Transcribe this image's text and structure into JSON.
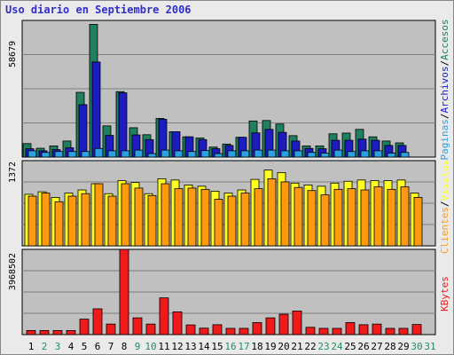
{
  "chart_data": {
    "type": "bar",
    "title": "Uso diario en Septiembre 2006",
    "categories": [
      "1",
      "2",
      "3",
      "4",
      "5",
      "6",
      "7",
      "8",
      "9",
      "10",
      "11",
      "12",
      "13",
      "14",
      "15",
      "16",
      "17",
      "18",
      "19",
      "20",
      "21",
      "22",
      "23",
      "24",
      "25",
      "26",
      "27",
      "28",
      "29",
      "30",
      "31"
    ],
    "weekend_days": [
      "2",
      "3",
      "9",
      "10",
      "16",
      "17",
      "23",
      "24",
      "30",
      "31"
    ],
    "panels": [
      {
        "name": "top",
        "max_label": "58679",
        "ymax": 58679,
        "series": [
          {
            "name": "Accesos",
            "color": "#1f7f5f",
            "values": [
              5800,
              3800,
              4800,
              6900,
              27800,
              57000,
              13400,
              28100,
              12600,
              9600,
              16600,
              10900,
              8700,
              8200,
              4300,
              5600,
              8500,
              15500,
              15700,
              14200,
              9200,
              4800,
              4800,
              10000,
              10300,
              11900,
              8700,
              6900,
              6100,
              null,
              null
            ]
          },
          {
            "name": "Archivos",
            "color": "#1c1cc0",
            "values": [
              3600,
              2700,
              3200,
              4000,
              22500,
              40800,
              9300,
              27600,
              9500,
              7500,
              16200,
              10900,
              8700,
              7500,
              3600,
              5000,
              8500,
              10400,
              11900,
              10600,
              6900,
              3700,
              3600,
              7200,
              7200,
              7700,
              7200,
              5000,
              5000,
              null,
              null
            ]
          },
          {
            "name": "Paginas",
            "color": "#2ca0e0",
            "values": [
              2700,
              2000,
              2400,
              2400,
              2400,
              3700,
              2700,
              2700,
              3000,
              1500,
              3000,
              2700,
              2400,
              2800,
              1500,
              2700,
              2700,
              3000,
              3000,
              2700,
              2700,
              2000,
              1700,
              3000,
              2400,
              2700,
              2700,
              1700,
              2000,
              null,
              null
            ]
          }
        ]
      },
      {
        "name": "middle",
        "max_label": "1372",
        "ymax": 1372,
        "series": [
          {
            "name": "Visitas",
            "color": "#ffff20",
            "values": [
              830,
              870,
              780,
              850,
              900,
              1000,
              840,
              1050,
              1020,
              840,
              1080,
              1060,
              980,
              960,
              880,
              850,
              900,
              1070,
              1220,
              1180,
              1010,
              980,
              960,
              1010,
              1040,
              1060,
              1050,
              1050,
              1060,
              850,
              null
            ]
          },
          {
            "name": "Clientes",
            "color": "#ff9a10",
            "values": [
              800,
              850,
              710,
              800,
              840,
              1000,
              800,
              1000,
              930,
              810,
              1000,
              920,
              930,
              910,
              750,
              800,
              850,
              920,
              1080,
              1030,
              940,
              890,
              820,
              910,
              920,
              900,
              950,
              910,
              950,
              780,
              null
            ]
          }
        ]
      },
      {
        "name": "bottom",
        "max_label": "3968502",
        "ymax": 3968502,
        "series": [
          {
            "name": "KBytes",
            "color": "#ef1a1a",
            "values": [
              190000,
              190000,
              190000,
              190000,
              720000,
              1200000,
              490000,
              3968502,
              780000,
              490000,
              1710000,
              1060000,
              450000,
              300000,
              460000,
              290000,
              290000,
              560000,
              780000,
              950000,
              1100000,
              340000,
              290000,
              290000,
              560000,
              460000,
              490000,
              290000,
              290000,
              470000,
              null
            ]
          }
        ]
      }
    ],
    "legends": [
      {
        "items": [
          {
            "text": "Paginas",
            "color": "#2ca0e0"
          },
          {
            "text": "/",
            "color": "#000000"
          },
          {
            "text": "Archivos",
            "color": "#1c1cc0"
          },
          {
            "text": "/",
            "color": "#000000"
          },
          {
            "text": "Accesos",
            "color": "#1f7f5f"
          }
        ]
      },
      {
        "items": [
          {
            "text": "Clientes",
            "color": "#ff9a10"
          },
          {
            "text": "/",
            "color": "#000000"
          },
          {
            "text": "Visitas",
            "color": "#ffff20"
          }
        ]
      },
      {
        "items": [
          {
            "text": "KBytes",
            "color": "#ef1a1a"
          }
        ]
      }
    ],
    "grid": true,
    "legend": "right"
  },
  "colors": {
    "plot_background": "#c0c0c0",
    "grid": "#808080",
    "weekday_label": "#000000",
    "weekend_label": "#1f8f5f",
    "title": "#2f2fc8"
  }
}
